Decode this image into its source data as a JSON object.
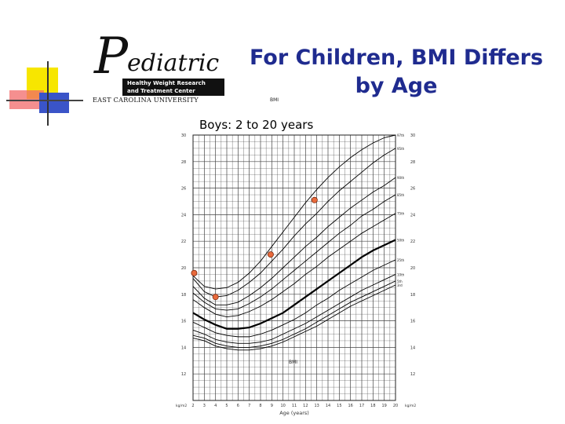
{
  "slide": {
    "title_line1": "For Children, BMI Differs",
    "title_line2": "by Age"
  },
  "logo": {
    "name_p": "P",
    "name_rest": "ediatric",
    "box_line1": "Healthy Weight Research",
    "box_line2": "and Treatment Center",
    "university": "EAST CAROLINA UNIVERSITY"
  },
  "labels": {
    "bmi_small_top": "BMI",
    "bmi_small_mid": "BMI",
    "age_axis": "Age (years)",
    "kg_left": "kg/m2",
    "kg_right": "kg/m2"
  },
  "colors": {
    "title": "#1f2b8f",
    "marker": "#e86a3c",
    "line": "#000000",
    "grid": "#444444"
  },
  "chart_data": {
    "type": "line",
    "title": "Boys: 2 to 20 years",
    "xlabel": "Age (years)",
    "ylabel": "BMI",
    "xlim": [
      2,
      20
    ],
    "ylim": [
      10,
      30
    ],
    "x_ticks": [
      2,
      3,
      4,
      5,
      6,
      7,
      8,
      9,
      10,
      11,
      12,
      13,
      14,
      15,
      16,
      17,
      18,
      19,
      20
    ],
    "y_ticks": [
      12,
      14,
      16,
      18,
      20,
      22,
      24,
      26,
      28,
      30
    ],
    "x": [
      2,
      3,
      4,
      5,
      6,
      7,
      8,
      9,
      10,
      11,
      12,
      13,
      14,
      15,
      16,
      17,
      18,
      19,
      20
    ],
    "series": [
      {
        "name": "97th",
        "values": [
          19.4,
          18.6,
          18.4,
          18.5,
          18.9,
          19.6,
          20.5,
          21.6,
          22.7,
          23.8,
          24.9,
          25.9,
          26.8,
          27.6,
          28.3,
          28.9,
          29.4,
          29.8,
          30.0
        ]
      },
      {
        "name": "95th",
        "values": [
          19.2,
          18.2,
          17.8,
          17.9,
          18.3,
          18.9,
          19.6,
          20.5,
          21.4,
          22.4,
          23.3,
          24.1,
          25.0,
          25.8,
          26.5,
          27.2,
          27.9,
          28.5,
          29.0
        ]
      },
      {
        "name": "90th",
        "values": [
          18.6,
          17.7,
          17.2,
          17.2,
          17.4,
          17.9,
          18.5,
          19.2,
          20.0,
          20.8,
          21.6,
          22.3,
          23.1,
          23.8,
          24.5,
          25.1,
          25.7,
          26.2,
          26.8
        ]
      },
      {
        "name": "85th",
        "values": [
          18.1,
          17.4,
          16.9,
          16.8,
          16.9,
          17.3,
          17.8,
          18.4,
          19.1,
          19.8,
          20.5,
          21.2,
          21.9,
          22.6,
          23.2,
          23.9,
          24.4,
          25.0,
          25.5
        ]
      },
      {
        "name": "75th",
        "values": [
          17.6,
          17.0,
          16.5,
          16.3,
          16.4,
          16.7,
          17.1,
          17.6,
          18.2,
          18.8,
          19.5,
          20.1,
          20.8,
          21.4,
          22.0,
          22.6,
          23.1,
          23.6,
          24.1
        ]
      },
      {
        "name": "50th",
        "values": [
          16.6,
          16.1,
          15.7,
          15.4,
          15.4,
          15.5,
          15.8,
          16.2,
          16.6,
          17.2,
          17.8,
          18.4,
          19.0,
          19.6,
          20.2,
          20.8,
          21.3,
          21.7,
          22.1
        ]
      },
      {
        "name": "25th",
        "values": [
          15.9,
          15.5,
          15.1,
          14.9,
          14.8,
          14.8,
          15.0,
          15.3,
          15.7,
          16.1,
          16.6,
          17.2,
          17.7,
          18.3,
          18.8,
          19.3,
          19.8,
          20.2,
          20.6
        ]
      },
      {
        "name": "10th",
        "values": [
          15.3,
          15.0,
          14.6,
          14.4,
          14.3,
          14.3,
          14.4,
          14.6,
          15.0,
          15.4,
          15.8,
          16.3,
          16.8,
          17.3,
          17.8,
          18.3,
          18.7,
          19.1,
          19.5
        ]
      },
      {
        "name": "5th",
        "values": [
          14.9,
          14.7,
          14.3,
          14.1,
          14.0,
          14.0,
          14.1,
          14.3,
          14.6,
          15.0,
          15.4,
          15.9,
          16.4,
          16.9,
          17.4,
          17.8,
          18.2,
          18.6,
          19.0
        ]
      },
      {
        "name": "3rd",
        "values": [
          14.7,
          14.5,
          14.1,
          13.9,
          13.8,
          13.8,
          13.9,
          14.1,
          14.4,
          14.8,
          15.2,
          15.6,
          16.1,
          16.6,
          17.1,
          17.5,
          17.9,
          18.3,
          18.7
        ]
      }
    ],
    "highlight_series": "50th",
    "percentile_labels": [
      "97th",
      "95th",
      "90th",
      "85th",
      "75th",
      "50th",
      "25th",
      "10th",
      "5th",
      "3rd"
    ],
    "markers": [
      {
        "x": 2.1,
        "y": 19.6
      },
      {
        "x": 4.0,
        "y": 17.8
      },
      {
        "x": 8.9,
        "y": 21.0
      },
      {
        "x": 12.8,
        "y": 25.1
      }
    ],
    "grid": true
  }
}
